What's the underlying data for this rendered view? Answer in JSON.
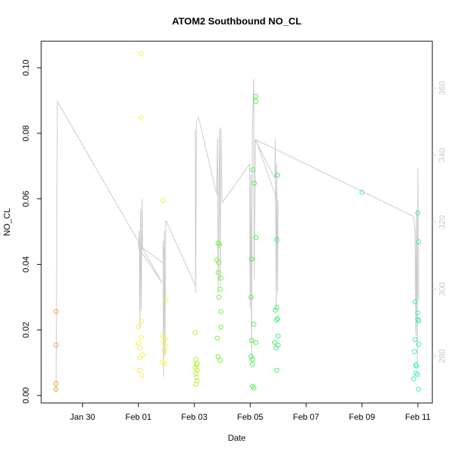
{
  "chart_data": {
    "type": "scatter",
    "title": "ATOM2 Southbound NO_CL",
    "x_label": "Date",
    "y_label": "NO_CL",
    "xlim": [
      28.52,
      42.52
    ],
    "ylim": [
      -0.0023,
      0.1081
    ],
    "y2lim": [
      266,
      374
    ],
    "xticks": [
      {
        "value": 30,
        "label": "Jan 30"
      },
      {
        "value": 32,
        "label": "Feb 01"
      },
      {
        "value": 34,
        "label": "Feb 03"
      },
      {
        "value": 36,
        "label": "Feb 05"
      },
      {
        "value": 38,
        "label": "Feb 07"
      },
      {
        "value": 40,
        "label": "Feb 09"
      },
      {
        "value": 42,
        "label": "Feb 11"
      }
    ],
    "yticks": [
      {
        "value": 0,
        "label": "0.00"
      },
      {
        "value": 0.02,
        "label": "0.02"
      },
      {
        "value": 0.04,
        "label": "0.04"
      },
      {
        "value": 0.06,
        "label": "0.06"
      },
      {
        "value": 0.08,
        "label": "0.08"
      },
      {
        "value": 0.1,
        "label": "0.10"
      }
    ],
    "y2ticks": [
      280,
      300,
      320,
      340,
      360
    ],
    "series": [
      {
        "color": "#f0a030",
        "x": [
          29.05,
          29.05,
          29.05,
          29.05
        ],
        "y": [
          0.0256,
          0.0154,
          0.0036,
          0.0019
        ]
      },
      {
        "color": "#f0f040",
        "x": [
          32.1,
          32.1,
          32.12,
          32.0,
          32.1,
          32.0,
          32.05,
          32.15,
          32.05,
          32.03,
          32.12,
          32.88,
          32.98,
          32.85,
          32.95,
          32.9,
          32.98,
          32.93,
          32.85,
          32.95
        ],
        "y": [
          0.1043,
          0.0849,
          0.0226,
          0.0209,
          0.0177,
          0.016,
          0.0145,
          0.0124,
          0.0115,
          0.0077,
          0.006,
          0.0595,
          0.029,
          0.0183,
          0.0173,
          0.0162,
          0.0149,
          0.0136,
          0.0102,
          0.0098
        ]
      },
      {
        "color": "#b8f030",
        "x": [
          34.03,
          34.05,
          34.1,
          34.08,
          34.03,
          34.1,
          34.05,
          34.08,
          34.1,
          34.05
        ],
        "y": [
          0.0192,
          0.011,
          0.0098,
          0.0094,
          0.0085,
          0.0077,
          0.0068,
          0.0055,
          0.0045,
          0.0034
        ]
      },
      {
        "color": "#70f030",
        "x": [
          34.85,
          34.9,
          34.8,
          34.88,
          34.85,
          34.95,
          34.93,
          34.88,
          34.95,
          34.95,
          34.83,
          34.85,
          34.93
        ],
        "y": [
          0.0465,
          0.046,
          0.0414,
          0.0405,
          0.0375,
          0.0358,
          0.0324,
          0.03,
          0.0256,
          0.0209,
          0.0175,
          0.0119,
          0.0107
        ]
      },
      {
        "color": "#40f040",
        "x": [
          36.2,
          36.2,
          36.1,
          36.15,
          36.2,
          36.05,
          36.03,
          36.13,
          36.05,
          36.2,
          36.03,
          36.08,
          36.08,
          36.08,
          36.13
        ],
        "y": [
          0.0913,
          0.0898,
          0.0689,
          0.0648,
          0.0482,
          0.0416,
          0.03,
          0.0217,
          0.0168,
          0.0162,
          0.0119,
          0.011,
          0.0094,
          0.0028,
          0.0023
        ]
      },
      {
        "color": "#30f060",
        "x": [
          36.98,
          36.95,
          36.95,
          36.9,
          36.98,
          36.95,
          37.0,
          36.88,
          37.0,
          36.93,
          36.95
        ],
        "y": [
          0.0672,
          0.0475,
          0.0269,
          0.026,
          0.0235,
          0.023,
          0.0181,
          0.0162,
          0.0154,
          0.0145,
          0.0077
        ]
      },
      {
        "color": "#30f0a0",
        "x": [
          40.0,
          42.0,
          42.03,
          41.9,
          42.0,
          42.0,
          42.03,
          41.9,
          42.03,
          41.88,
          41.93,
          41.95,
          41.93,
          41.98,
          41.85,
          42.03
        ],
        "y": [
          0.062,
          0.0557,
          0.0469,
          0.0286,
          0.0252,
          0.0232,
          0.0228,
          0.0171,
          0.0156,
          0.0134,
          0.0094,
          0.009,
          0.0068,
          0.0064,
          0.0051,
          0.0019
        ]
      }
    ],
    "line": {
      "axis": "y2",
      "color": "#c8c8c8",
      "x": [
        29.05,
        29.1,
        32.85,
        32.0,
        32.03,
        32.05,
        32.08,
        32.1,
        32.13,
        32.15,
        32.93,
        32.88,
        32.9,
        32.93,
        32.95,
        32.98,
        34.05,
        34.03,
        34.05,
        34.08,
        34.15,
        34.8,
        34.83,
        34.85,
        34.9,
        34.93,
        34.95,
        35.0,
        35.98,
        36.0,
        36.03,
        36.05,
        36.08,
        36.13,
        36.15,
        36.18,
        36.88,
        36.9,
        36.93,
        36.95,
        36.98,
        37.0,
        36.2,
        41.85,
        41.9,
        41.93,
        41.95,
        41.98,
        42.0,
        42.03
      ],
      "y": [
        269.6,
        356.0,
        301.9,
        312.3,
        317.5,
        288.3,
        323.8,
        293.5,
        326.9,
        312.3,
        307.5,
        314.4,
        273.8,
        317.5,
        280.0,
        320.6,
        300.8,
        347.7,
        298.8,
        349.8,
        351.3,
        328.3,
        345.0,
        298.8,
        347.7,
        300.8,
        348.3,
        325.8,
        337.3,
        294.6,
        334.2,
        277.9,
        348.8,
        362.7,
        302.9,
        344.6,
        333.1,
        344.6,
        294.6,
        337.3,
        298.8,
        325.8,
        344.6,
        321.7,
        317.5,
        286.3,
        323.8,
        277.9,
        336.3,
        296.7
      ]
    }
  }
}
